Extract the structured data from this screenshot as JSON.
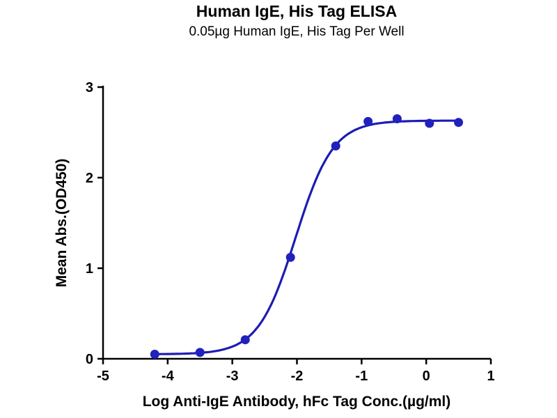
{
  "chart_data": {
    "type": "scatter",
    "title": "Human IgE, His Tag ELISA",
    "subtitle": "0.05µg Human IgE, His Tag Per Well",
    "xlabel": "Log Anti-IgE Antibody, hFc Tag Conc.(µg/ml)",
    "ylabel": "Mean Abs.(OD450)",
    "xlim": [
      -5,
      1
    ],
    "ylim": [
      0,
      3
    ],
    "x_ticks": [
      -5,
      -4,
      -3,
      -2,
      -1,
      0,
      1
    ],
    "y_ticks": [
      0,
      1,
      2,
      3
    ],
    "grid": false,
    "legend": "none",
    "series": [
      {
        "name": "Anti-IgE Antibody, hFc Tag",
        "x": [
          -4.2,
          -3.5,
          -2.8,
          -2.1,
          -1.4,
          -0.9,
          -0.45,
          0.05,
          0.5
        ],
        "y": [
          0.05,
          0.07,
          0.21,
          1.12,
          2.35,
          2.62,
          2.65,
          2.6,
          2.61
        ]
      }
    ],
    "fit_curve": {
      "model": "4PL sigmoidal dose-response",
      "bottom": 0.05,
      "top": 2.63,
      "log_ec50": -2.02,
      "hill_slope": 1.5
    },
    "colors": {
      "marker": "#2121bd",
      "curve": "#1c1cb4",
      "axis": "#000000",
      "text": "#000000",
      "background": "#ffffff"
    },
    "marker": {
      "shape": "circle",
      "radius_px": 6.5
    }
  }
}
